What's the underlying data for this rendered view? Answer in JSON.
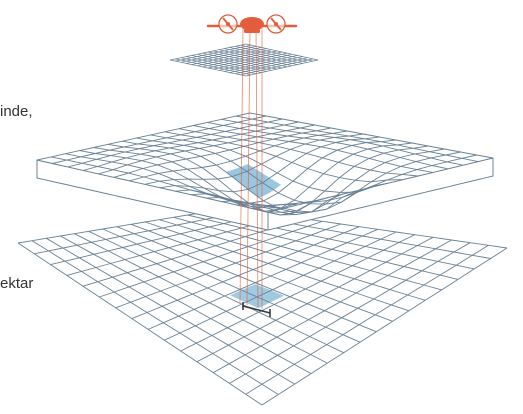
{
  "labels": {
    "terrain_fragment": "inde,",
    "ground_fragment": "ektar"
  },
  "colors": {
    "grid_line": "#6b8296",
    "highlight_fill": "#8ec1dc",
    "beam": "#e35d3c",
    "drone_body": "#e35d3c",
    "background": "#ffffff"
  },
  "icons": {
    "drone": "drone-icon",
    "scale_bar": "scale-bar-icon"
  }
}
